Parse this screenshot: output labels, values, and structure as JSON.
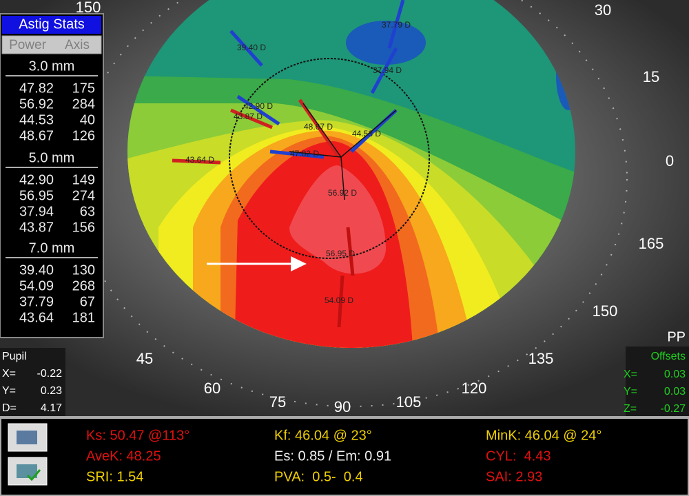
{
  "astig_panel": {
    "title": "Astig Stats",
    "tabs": [
      "Power",
      "Axis"
    ],
    "sections": [
      {
        "label": "3.0 mm",
        "rows": [
          [
            "47.82",
            "175"
          ],
          [
            "56.92",
            "284"
          ],
          [
            "44.53",
            "40"
          ],
          [
            "48.67",
            "126"
          ]
        ]
      },
      {
        "label": "5.0 mm",
        "rows": [
          [
            "42.90",
            "149"
          ],
          [
            "56.95",
            "274"
          ],
          [
            "37.94",
            "63"
          ],
          [
            "43.87",
            "156"
          ]
        ]
      },
      {
        "label": "7.0 mm",
        "rows": [
          [
            "39.40",
            "130"
          ],
          [
            "54.09",
            "268"
          ],
          [
            "37.79",
            "67"
          ],
          [
            "43.64",
            "181"
          ]
        ]
      }
    ]
  },
  "pupil": {
    "title": "Pupil",
    "rows": [
      [
        "X=",
        "-0.22"
      ],
      [
        "Y=",
        "0.23"
      ],
      [
        "D=",
        "4.17"
      ]
    ]
  },
  "offsets": {
    "mode": "PP",
    "title": "Offsets",
    "rows": [
      [
        "X=",
        "0.03"
      ],
      [
        "Y=",
        "0.03"
      ],
      [
        "Z=",
        "-0.27"
      ]
    ]
  },
  "axis_labels": [
    "150",
    "30",
    "15",
    "0",
    "165",
    "150",
    "135",
    "120",
    "105",
    "90",
    "75",
    "60",
    "45"
  ],
  "map_labels": [
    "39.40 D",
    "37.79 D",
    "37.94 D",
    "42.90 D",
    "43.87 D",
    "48.67 D",
    "44.53 D",
    "47.82 D",
    "43.64 D",
    "56.92 D",
    "56.95 D",
    "54.09 D"
  ],
  "status": [
    [
      "Ks: 50.47 @113°",
      "AveK: 48.25",
      "SRI: 1.54"
    ],
    [
      "Kf: 46.04 @ 23°",
      "Es: 0.85 / Em: 0.91",
      "PVA:  0.5-  0.4"
    ],
    [
      "MinK: 46.04 @ 24°",
      "CYL:  4.43",
      "SAI: 2.93"
    ]
  ]
}
